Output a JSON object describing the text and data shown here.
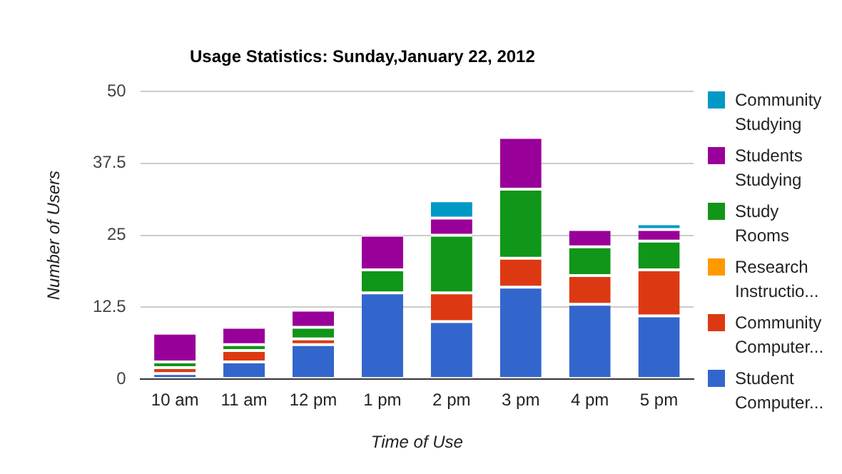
{
  "chart_data": {
    "type": "bar",
    "stacked": true,
    "title": "Usage Statistics: Sunday,January 22, 2012",
    "xlabel": "Time of Use",
    "ylabel": "Number of Users",
    "categories": [
      "10 am",
      "11 am",
      "12 pm",
      "1 pm",
      "2 pm",
      "3 pm",
      "4 pm",
      "5 pm"
    ],
    "series": [
      {
        "name": "Student Computer...",
        "color": "#3366cc",
        "values": [
          1,
          3,
          6,
          15,
          10,
          16,
          13,
          11
        ]
      },
      {
        "name": "Community Computer...",
        "color": "#dc3912",
        "values": [
          1,
          2,
          1,
          0,
          5,
          5,
          5,
          8
        ]
      },
      {
        "name": "Research Instructio...",
        "color": "#ff9900",
        "values": [
          0,
          0,
          0,
          0,
          0,
          0,
          0,
          0
        ]
      },
      {
        "name": "Study Rooms",
        "color": "#109618",
        "values": [
          1,
          1,
          2,
          4,
          10,
          12,
          5,
          5
        ]
      },
      {
        "name": "Students Studying",
        "color": "#990099",
        "values": [
          5,
          3,
          3,
          6,
          3,
          9,
          3,
          2
        ]
      },
      {
        "name": "Community Studying",
        "color": "#0099c6",
        "values": [
          0,
          0,
          0,
          0,
          3,
          0,
          0,
          1
        ]
      }
    ],
    "ylim": [
      0,
      50
    ],
    "yticks": [
      0,
      12.5,
      25,
      37.5,
      50
    ],
    "grid": "y",
    "legend": "right"
  }
}
